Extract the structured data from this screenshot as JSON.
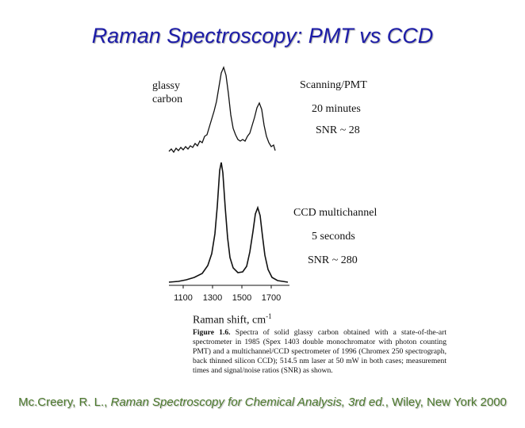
{
  "title": "Raman Spectroscopy: PMT vs CCD",
  "figure": {
    "sample_label": [
      "glassy",
      "carbon"
    ],
    "top_panel": [
      "Scanning/PMT",
      "20 minutes",
      "SNR ~ 28"
    ],
    "bottom_panel": [
      "CCD multichannel",
      "5 seconds",
      "SNR ~ 280"
    ],
    "x_ticks": [
      1100,
      1300,
      1500,
      1700
    ],
    "x_label": "Raman shift, cm",
    "x_label_exponent": "-1",
    "caption": {
      "label": "Figure 1.6.",
      "text": "Spectra of solid glassy carbon obtained with a state-of-the-art spectrometer in 1985 (Spex 1403 double monochromator with photon counting PMT) and a multichannel/CCD spectrometer of 1996 (Chromex 250 spectrograph, back thinned silicon CCD); 514.5 nm laser at 50 mW in both cases; measurement times and signal/noise ratios (SNR) as shown."
    }
  },
  "citation": {
    "author": "Mc.Creery, R. L., ",
    "book": "Raman Spectroscopy for Chemical Analysis, 3rd ed.",
    "rest": ", Wiley, New York 2000"
  }
}
